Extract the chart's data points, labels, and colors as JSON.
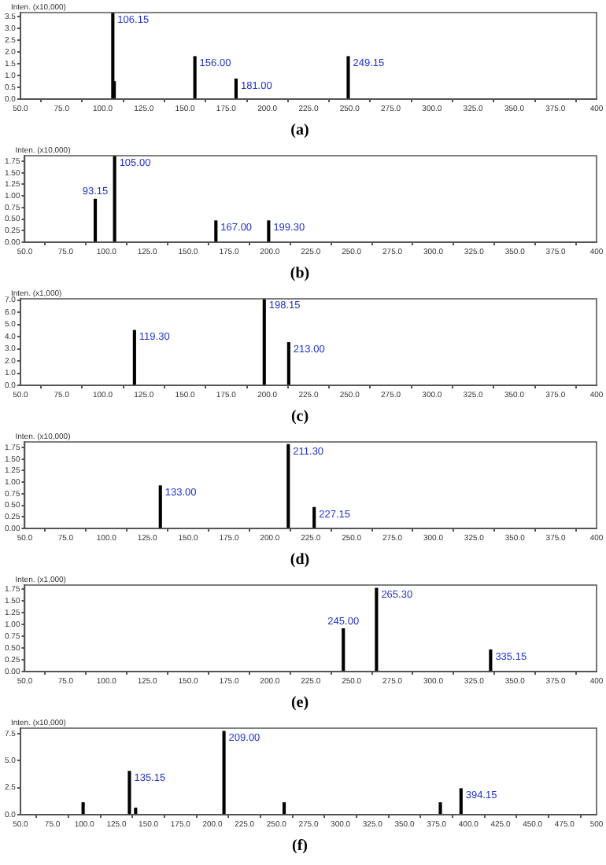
{
  "chart_data": [
    {
      "type": "bar",
      "title": "(a)",
      "ylabel": "Inten. (x10,000)",
      "color": "#000000",
      "x": [
        106.15,
        107,
        156,
        181,
        249.15
      ],
      "values": [
        3.65,
        0.74,
        1.8,
        0.85,
        1.8
      ],
      "xlim": [
        50,
        400
      ],
      "xticks": [
        {
          "value": 50,
          "label": "50.0"
        },
        {
          "value": 75,
          "label": "75.0"
        },
        {
          "value": 100,
          "label": "100.0"
        },
        {
          "value": 125,
          "label": "125.0"
        },
        {
          "value": 150,
          "label": "150.0"
        },
        {
          "value": 175,
          "label": "175.0"
        },
        {
          "value": 200,
          "label": "200.0"
        },
        {
          "value": 225,
          "label": "225.0"
        },
        {
          "value": 250,
          "label": "250.0"
        },
        {
          "value": 275,
          "label": "275.0"
        },
        {
          "value": 300,
          "label": "300.0"
        },
        {
          "value": 325,
          "label": "325.0"
        },
        {
          "value": 350,
          "label": "350.0"
        },
        {
          "value": 375,
          "label": "375.0"
        },
        {
          "value": 400,
          "label": "400"
        }
      ],
      "ylim": [
        0,
        3.67
      ],
      "yticks": [
        {
          "value": 0,
          "label": "0.0"
        },
        {
          "value": 0.5,
          "label": "0.5"
        },
        {
          "value": 1,
          "label": "1.0"
        },
        {
          "value": 1.5,
          "label": "1.5"
        },
        {
          "value": 2,
          "label": "2.0"
        },
        {
          "value": 2.5,
          "label": "2.5"
        },
        {
          "value": 3,
          "label": "3.0"
        },
        {
          "value": 3.5,
          "label": "3.5"
        }
      ],
      "annotations": [
        {
          "text": "106.15",
          "x": 106.15,
          "y": 3.65
        },
        {
          "text": "156.00",
          "x": 156,
          "y": 1.8
        },
        {
          "text": "181.00",
          "x": 181,
          "y": 0.85
        },
        {
          "text": "249.15",
          "x": 249.15,
          "y": 1.8
        }
      ]
    },
    {
      "type": "bar",
      "title": "(b)",
      "ylabel": "Inten. (x10,000)",
      "color": "#000000",
      "x": [
        93.15,
        105,
        167,
        199.3
      ],
      "values": [
        0.93,
        1.86,
        0.46,
        0.46
      ],
      "xlim": [
        50,
        400
      ],
      "xticks": [
        {
          "value": 50,
          "label": "50.0"
        },
        {
          "value": 75,
          "label": "75.0"
        },
        {
          "value": 100,
          "label": "100.0"
        },
        {
          "value": 125,
          "label": "125.0"
        },
        {
          "value": 150,
          "label": "150.0"
        },
        {
          "value": 175,
          "label": "175.0"
        },
        {
          "value": 200,
          "label": "200.0"
        },
        {
          "value": 225,
          "label": "225.0"
        },
        {
          "value": 250,
          "label": "250.0"
        },
        {
          "value": 275,
          "label": "275.0"
        },
        {
          "value": 300,
          "label": "300.0"
        },
        {
          "value": 325,
          "label": "325.0"
        },
        {
          "value": 350,
          "label": "350.0"
        },
        {
          "value": 375,
          "label": "375.0"
        },
        {
          "value": 400,
          "label": "400"
        }
      ],
      "ylim": [
        0,
        1.87
      ],
      "yticks": [
        {
          "value": 0,
          "label": "0.00"
        },
        {
          "value": 0.25,
          "label": "0.25"
        },
        {
          "value": 0.5,
          "label": "0.50"
        },
        {
          "value": 0.75,
          "label": "0.75"
        },
        {
          "value": 1,
          "label": "1.00"
        },
        {
          "value": 1.25,
          "label": "1.25"
        },
        {
          "value": 1.5,
          "label": "1.50"
        },
        {
          "value": 1.75,
          "label": "1.75"
        }
      ],
      "annotations": [
        {
          "text": "93.15",
          "x": 93.15,
          "y": 0.93
        },
        {
          "text": "105.00",
          "x": 105,
          "y": 1.86
        },
        {
          "text": "167.00",
          "x": 167,
          "y": 0.46
        },
        {
          "text": "199.30",
          "x": 199.3,
          "y": 0.46
        }
      ]
    },
    {
      "type": "bar",
      "title": "(c)",
      "ylabel": "Inten. (x1,000)",
      "color": "#000000",
      "x": [
        119.3,
        198.15,
        213
      ],
      "values": [
        4.5,
        7.1,
        3.5
      ],
      "xlim": [
        50,
        400
      ],
      "xticks": [
        {
          "value": 50,
          "label": "50.0"
        },
        {
          "value": 75,
          "label": "75.0"
        },
        {
          "value": 100,
          "label": "100.0"
        },
        {
          "value": 125,
          "label": "125.0"
        },
        {
          "value": 150,
          "label": "150.0"
        },
        {
          "value": 175,
          "label": "175.0"
        },
        {
          "value": 200,
          "label": "200.0"
        },
        {
          "value": 225,
          "label": "225.0"
        },
        {
          "value": 250,
          "label": "250.0"
        },
        {
          "value": 275,
          "label": "275.0"
        },
        {
          "value": 300,
          "label": "300.0"
        },
        {
          "value": 325,
          "label": "325.0"
        },
        {
          "value": 350,
          "label": "350.0"
        },
        {
          "value": 375,
          "label": "375.0"
        },
        {
          "value": 400,
          "label": "400"
        }
      ],
      "ylim": [
        0,
        7.1
      ],
      "yticks": [
        {
          "value": 0,
          "label": "0.0"
        },
        {
          "value": 1,
          "label": "1.0"
        },
        {
          "value": 2,
          "label": "2.0"
        },
        {
          "value": 3,
          "label": "3.0"
        },
        {
          "value": 4,
          "label": "4.0"
        },
        {
          "value": 5,
          "label": "5.0"
        },
        {
          "value": 6,
          "label": "6.0"
        },
        {
          "value": 7,
          "label": "7.0"
        }
      ],
      "annotations": [
        {
          "text": "119.30",
          "x": 119.3,
          "y": 4.5
        },
        {
          "text": "198.15",
          "x": 198.15,
          "y": 7.1
        },
        {
          "text": "213.00",
          "x": 213,
          "y": 3.5
        }
      ]
    },
    {
      "type": "bar",
      "title": "(d)",
      "ylabel": "Inten. (x10,000)",
      "color": "#000000",
      "x": [
        133,
        211.3,
        227.15
      ],
      "values": [
        0.92,
        1.81,
        0.45
      ],
      "xlim": [
        50,
        400
      ],
      "xticks": [
        {
          "value": 50,
          "label": "50.0"
        },
        {
          "value": 75,
          "label": "75.0"
        },
        {
          "value": 100,
          "label": "100.0"
        },
        {
          "value": 125,
          "label": "125.0"
        },
        {
          "value": 150,
          "label": "150.0"
        },
        {
          "value": 175,
          "label": "175.0"
        },
        {
          "value": 200,
          "label": "200.0"
        },
        {
          "value": 225,
          "label": "225.0"
        },
        {
          "value": 250,
          "label": "250.0"
        },
        {
          "value": 275,
          "label": "275.0"
        },
        {
          "value": 300,
          "label": "300.0"
        },
        {
          "value": 325,
          "label": "325.0"
        },
        {
          "value": 350,
          "label": "350.0"
        },
        {
          "value": 375,
          "label": "375.0"
        },
        {
          "value": 400,
          "label": "400"
        }
      ],
      "ylim": [
        0,
        1.87
      ],
      "yticks": [
        {
          "value": 0,
          "label": "0.00"
        },
        {
          "value": 0.25,
          "label": "0.25"
        },
        {
          "value": 0.5,
          "label": "0.50"
        },
        {
          "value": 0.75,
          "label": "0.75"
        },
        {
          "value": 1,
          "label": "1.00"
        },
        {
          "value": 1.25,
          "label": "1.25"
        },
        {
          "value": 1.5,
          "label": "1.50"
        },
        {
          "value": 1.75,
          "label": "1.75"
        }
      ],
      "annotations": [
        {
          "text": "133.00",
          "x": 133,
          "y": 0.92
        },
        {
          "text": "211.30",
          "x": 211.3,
          "y": 1.81
        },
        {
          "text": "227.15",
          "x": 227.15,
          "y": 0.45
        }
      ]
    },
    {
      "type": "bar",
      "title": "(e)",
      "ylabel": "Inten. (x1,000)",
      "color": "#000000",
      "x": [
        245,
        265.3,
        335.15
      ],
      "values": [
        0.91,
        1.77,
        0.46
      ],
      "xlim": [
        50,
        400
      ],
      "xticks": [
        {
          "value": 50,
          "label": "50.0"
        },
        {
          "value": 75,
          "label": "75.0"
        },
        {
          "value": 100,
          "label": "100.0"
        },
        {
          "value": 125,
          "label": "125.0"
        },
        {
          "value": 150,
          "label": "150.0"
        },
        {
          "value": 175,
          "label": "175.0"
        },
        {
          "value": 200,
          "label": "200.0"
        },
        {
          "value": 225,
          "label": "225.0"
        },
        {
          "value": 250,
          "label": "250.0"
        },
        {
          "value": 275,
          "label": "275.0"
        },
        {
          "value": 300,
          "label": "300.0"
        },
        {
          "value": 325,
          "label": "325.0"
        },
        {
          "value": 350,
          "label": "350.0"
        },
        {
          "value": 375,
          "label": "375.0"
        },
        {
          "value": 400,
          "label": "400"
        }
      ],
      "ylim": [
        0,
        1.84
      ],
      "yticks": [
        {
          "value": 0,
          "label": "0.00"
        },
        {
          "value": 0.25,
          "label": "0.25"
        },
        {
          "value": 0.5,
          "label": "0.50"
        },
        {
          "value": 0.75,
          "label": "0.75"
        },
        {
          "value": 1,
          "label": "1.00"
        },
        {
          "value": 1.25,
          "label": "1.25"
        },
        {
          "value": 1.5,
          "label": "1.50"
        },
        {
          "value": 1.75,
          "label": "1.75"
        }
      ],
      "annotations": [
        {
          "text": "245.00",
          "x": 245,
          "y": 0.91
        },
        {
          "text": "265.30",
          "x": 265.3,
          "y": 1.77
        },
        {
          "text": "335.15",
          "x": 335.15,
          "y": 0.46
        }
      ]
    },
    {
      "type": "bar",
      "title": "(f)",
      "ylabel": "Inten. (x10,000)",
      "color": "#000000",
      "x": [
        99,
        135.15,
        140,
        209,
        256,
        378,
        394.15
      ],
      "values": [
        1.1,
        4.0,
        0.6,
        7.7,
        1.1,
        1.1,
        2.4
      ],
      "xlim": [
        50,
        500
      ],
      "xticks": [
        {
          "value": 50,
          "label": "50.0"
        },
        {
          "value": 75,
          "label": "75.0"
        },
        {
          "value": 100,
          "label": "100.0"
        },
        {
          "value": 125,
          "label": "125.0"
        },
        {
          "value": 150,
          "label": "150.0"
        },
        {
          "value": 175,
          "label": "175.0"
        },
        {
          "value": 200,
          "label": "200.0"
        },
        {
          "value": 225,
          "label": "225.0"
        },
        {
          "value": 250,
          "label": "250.0"
        },
        {
          "value": 275,
          "label": "275.0"
        },
        {
          "value": 300,
          "label": "300.0"
        },
        {
          "value": 325,
          "label": "325.0"
        },
        {
          "value": 350,
          "label": "350.0"
        },
        {
          "value": 375,
          "label": "375.0"
        },
        {
          "value": 400,
          "label": "400.0"
        },
        {
          "value": 425,
          "label": "425.0"
        },
        {
          "value": 450,
          "label": "450.0"
        },
        {
          "value": 475,
          "label": "475.0"
        },
        {
          "value": 500,
          "label": "500"
        }
      ],
      "ylim": [
        0,
        8
      ],
      "yticks": [
        {
          "value": 0,
          "label": "0.0"
        },
        {
          "value": 2.5,
          "label": "2.5"
        },
        {
          "value": 5,
          "label": "5.0"
        },
        {
          "value": 7.5,
          "label": "7.5"
        }
      ],
      "annotations": [
        {
          "text": "135.15",
          "x": 135.15,
          "y": 4.0
        },
        {
          "text": "209.00",
          "x": 209,
          "y": 7.7
        },
        {
          "text": "394.15",
          "x": 394.15,
          "y": 2.4
        }
      ]
    }
  ]
}
